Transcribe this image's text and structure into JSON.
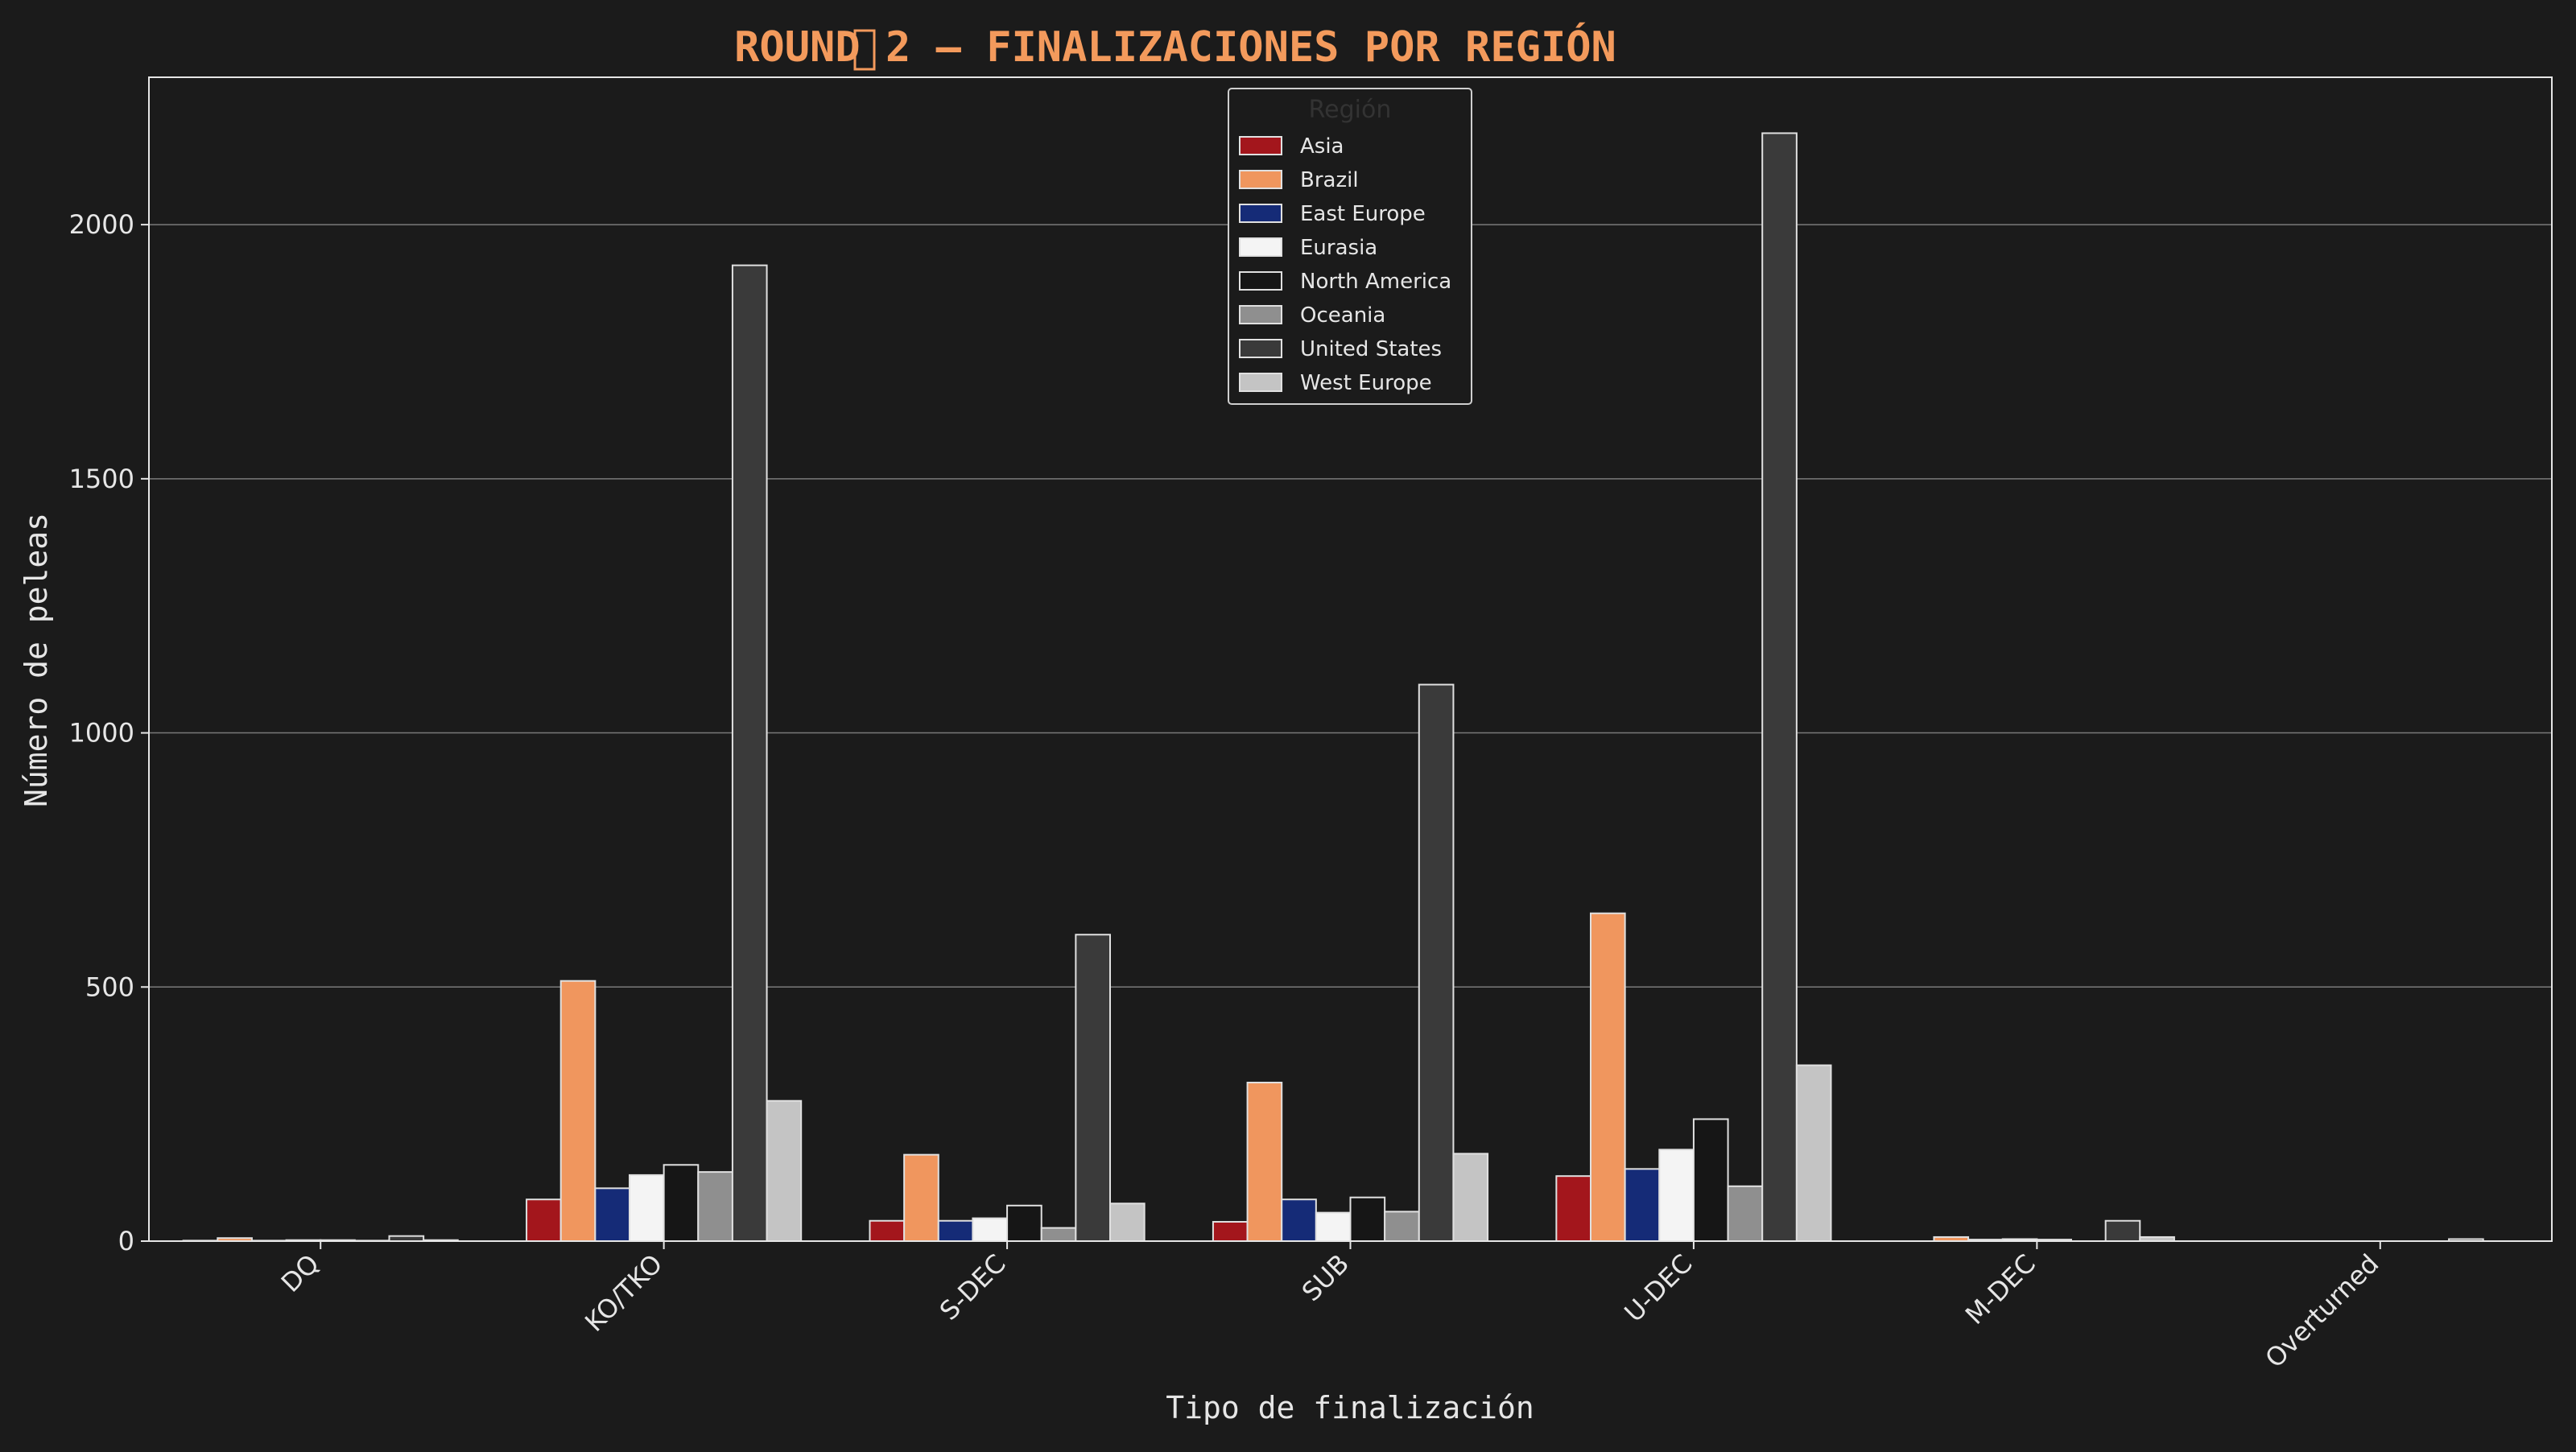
{
  "chart_data": {
    "type": "bar",
    "title": "ROUND 2 — FINALIZACIONES POR REGIÓN",
    "title_icon": "missing-glyph-box",
    "title_color": "#f39a5c",
    "xlabel": "Tipo de finalización",
    "ylabel": "Número de peleas",
    "ylim": [
      0,
      2290
    ],
    "yticks": [
      0,
      500,
      1000,
      1500,
      2000
    ],
    "grid": true,
    "legend": {
      "title": "Región",
      "position": "top-center"
    },
    "categories": [
      "DQ",
      "KO/TKO",
      "S-DEC",
      "SUB",
      "U-DEC",
      "M-DEC",
      "Overturned"
    ],
    "series": [
      {
        "name": "Asia",
        "color": "#a3161c",
        "values": [
          1,
          82,
          40,
          38,
          128,
          0,
          0
        ]
      },
      {
        "name": "Brazil",
        "color": "#f0965e",
        "values": [
          6,
          512,
          170,
          312,
          645,
          8,
          0
        ]
      },
      {
        "name": "East Europe",
        "color": "#152b77",
        "values": [
          1,
          104,
          40,
          82,
          142,
          3,
          0
        ]
      },
      {
        "name": "Eurasia",
        "color": "#f4f4f4",
        "values": [
          2,
          130,
          45,
          56,
          180,
          4,
          0
        ]
      },
      {
        "name": "North America",
        "color": "#161616",
        "values": [
          2,
          150,
          70,
          86,
          240,
          3,
          0
        ]
      },
      {
        "name": "Oceania",
        "color": "#8f8f8f",
        "values": [
          1,
          136,
          26,
          58,
          108,
          0,
          0
        ]
      },
      {
        "name": "United States",
        "color": "#3a3a3a",
        "values": [
          10,
          1920,
          603,
          1095,
          2180,
          40,
          4
        ]
      },
      {
        "name": "West Europe",
        "color": "#c4c4c4",
        "values": [
          2,
          276,
          74,
          172,
          346,
          8,
          0
        ]
      }
    ]
  },
  "colors": {
    "background": "#1b1b1b",
    "text": "#e6e6e6",
    "grid": "#7a7a7a",
    "bar_edge": "#e0e0e0"
  }
}
